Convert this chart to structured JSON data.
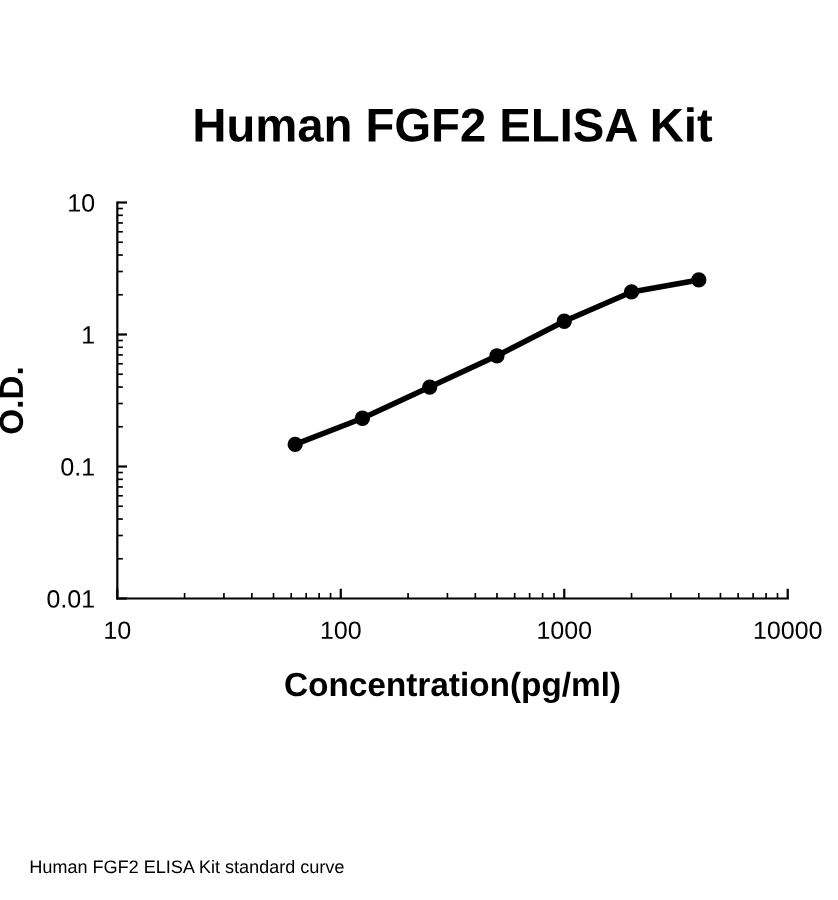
{
  "chart_data": {
    "type": "line",
    "title": "Human FGF2 ELISA Kit",
    "xlabel": "Concentration(pg/ml)",
    "ylabel": "O.D.",
    "annotations": [
      "Human FGF2 ELISA Kit standard curve"
    ],
    "x": [
      62.5,
      125,
      250,
      500,
      1000,
      2000,
      4000
    ],
    "series": [
      {
        "color": "#000000",
        "values": [
          0.147,
          0.232,
          0.4,
          0.69,
          1.26,
          2.1,
          2.59
        ]
      }
    ],
    "log": "xy",
    "xlim": [
      10,
      10000
    ],
    "ylim": [
      0.01,
      10
    ],
    "xticks": [
      10,
      100,
      1000,
      10000
    ],
    "yticks": [
      0.01,
      0.1,
      1,
      10
    ],
    "marker": "circle",
    "line_style": "solid",
    "grid": false,
    "legend": false
  }
}
